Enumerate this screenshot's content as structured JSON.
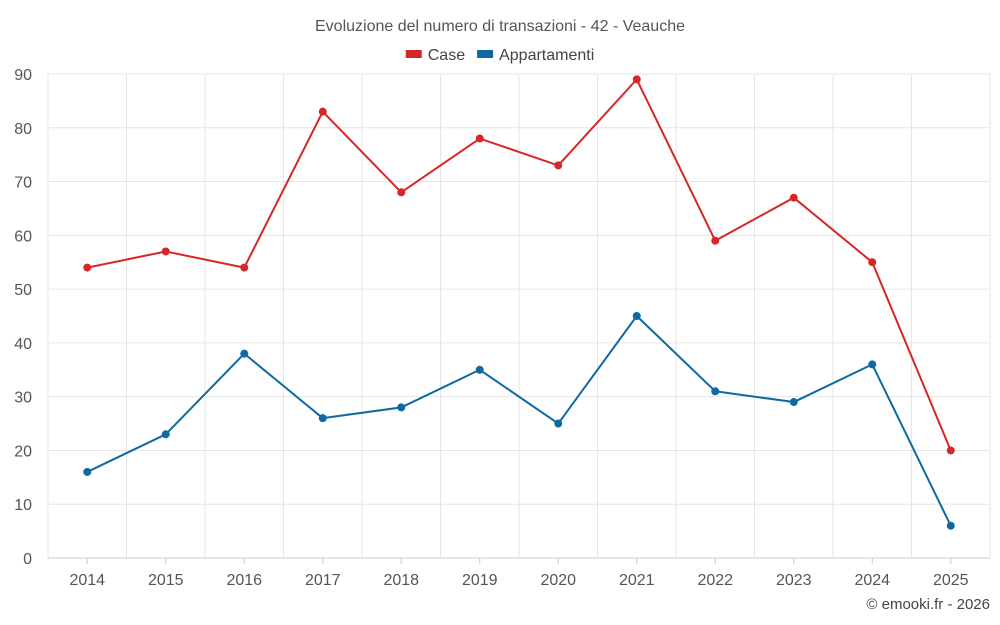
{
  "chart_data": {
    "type": "line",
    "title": "Evoluzione del numero di transazioni - 42 - Veauche",
    "categories": [
      "2014",
      "2015",
      "2016",
      "2017",
      "2018",
      "2019",
      "2020",
      "2021",
      "2022",
      "2023",
      "2024",
      "2025"
    ],
    "series": [
      {
        "name": "Case",
        "color": "#d62728",
        "values": [
          54,
          57,
          54,
          83,
          68,
          78,
          73,
          89,
          59,
          67,
          55,
          20
        ]
      },
      {
        "name": "Appartamenti",
        "color": "#0e6aa0",
        "values": [
          16,
          23,
          38,
          26,
          28,
          35,
          25,
          45,
          31,
          29,
          36,
          6
        ]
      }
    ],
    "ylim": [
      0,
      90
    ],
    "yticks": [
      0,
      10,
      20,
      30,
      40,
      50,
      60,
      70,
      80,
      90
    ],
    "xlabel": "",
    "ylabel": "",
    "grid": true,
    "legend": "top-center"
  },
  "credit": "© emooki.fr - 2026"
}
